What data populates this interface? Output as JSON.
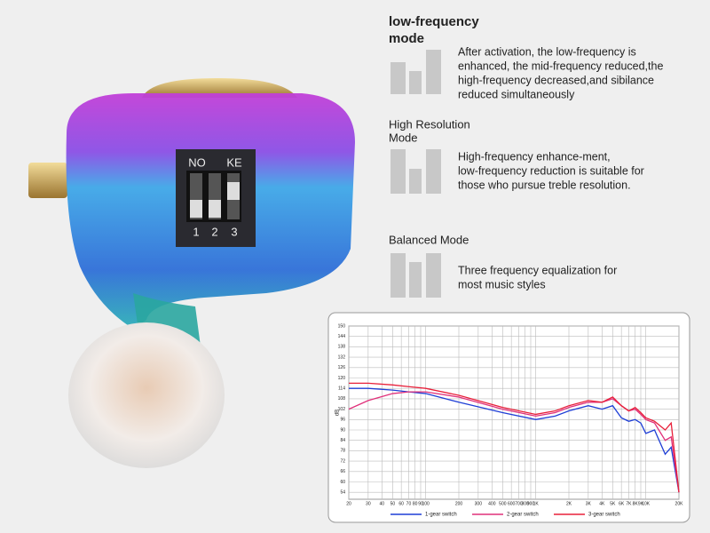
{
  "switch_labels": {
    "top": [
      "NO",
      "KE"
    ],
    "bottom": [
      "1",
      "2",
      "3"
    ]
  },
  "modes": [
    {
      "title": [
        "low-frequency",
        "mode"
      ],
      "description": [
        "After activation, the low-frequency is",
        "enhanced, the mid-frequency reduced,the",
        "high-frequency decreased,and sibilance",
        "reduced simultaneously"
      ]
    },
    {
      "title": [
        "High Resolution",
        "Mode"
      ],
      "description": [
        "High-frequency enhance-ment,",
        "low-frequency reduction is suitable for",
        "those who pursue treble resolution."
      ]
    },
    {
      "title": [
        "Balanced Mode"
      ],
      "description": [
        "Three frequency equalization for",
        "most music styles"
      ]
    }
  ],
  "chart_data": {
    "type": "line",
    "y_label": "dB",
    "log_x": true,
    "grid": true,
    "xlim": [
      20,
      20000
    ],
    "ylim": [
      50,
      150
    ],
    "xticks": [
      20,
      30,
      40,
      50,
      60,
      70,
      80,
      90,
      100,
      200,
      300,
      400,
      500,
      600,
      700,
      800,
      900,
      {
        "value": 1000,
        "label": "1K"
      },
      {
        "value": 2000,
        "label": "2K"
      },
      {
        "value": 3000,
        "label": "3K"
      },
      {
        "value": 4000,
        "label": "4K"
      },
      {
        "value": 5000,
        "label": "5K"
      },
      {
        "value": 6000,
        "label": "6K"
      },
      {
        "value": 7000,
        "label": "7K"
      },
      {
        "value": 8000,
        "label": "8K"
      },
      {
        "value": 9000,
        "label": "9K"
      },
      {
        "value": 10000,
        "label": "10K"
      },
      {
        "value": 20000,
        "label": "20K"
      }
    ],
    "yticks": [
      54,
      60,
      66,
      72,
      78,
      84,
      90,
      96,
      102,
      108,
      114,
      120,
      126,
      132,
      138,
      144,
      150
    ],
    "x": [
      20,
      30,
      50,
      70,
      100,
      200,
      500,
      1000,
      1500,
      2000,
      3000,
      4000,
      5000,
      6000,
      7000,
      8000,
      9000,
      10000,
      12000,
      15000,
      17000,
      20000
    ],
    "series": [
      {
        "name": "1-gear switch",
        "color": "#1f3fd6",
        "values": [
          114,
          114,
          113,
          112,
          111,
          106,
          100,
          96,
          98,
          101,
          104,
          102,
          104,
          97,
          95,
          96,
          94,
          88,
          90,
          76,
          80,
          54
        ]
      },
      {
        "name": "2-gear switch",
        "color": "#e0307a",
        "values": [
          102,
          107,
          111,
          112,
          112,
          109,
          102,
          98,
          100,
          103,
          106,
          106,
          108,
          104,
          101,
          102,
          99,
          96,
          94,
          84,
          86,
          54
        ]
      },
      {
        "name": "3-gear switch",
        "color": "#e8203a",
        "values": [
          117,
          117,
          116,
          115,
          114,
          110,
          103,
          99,
          101,
          104,
          107,
          106,
          109,
          104,
          101,
          103,
          100,
          97,
          95,
          90,
          94,
          54
        ]
      }
    ]
  }
}
